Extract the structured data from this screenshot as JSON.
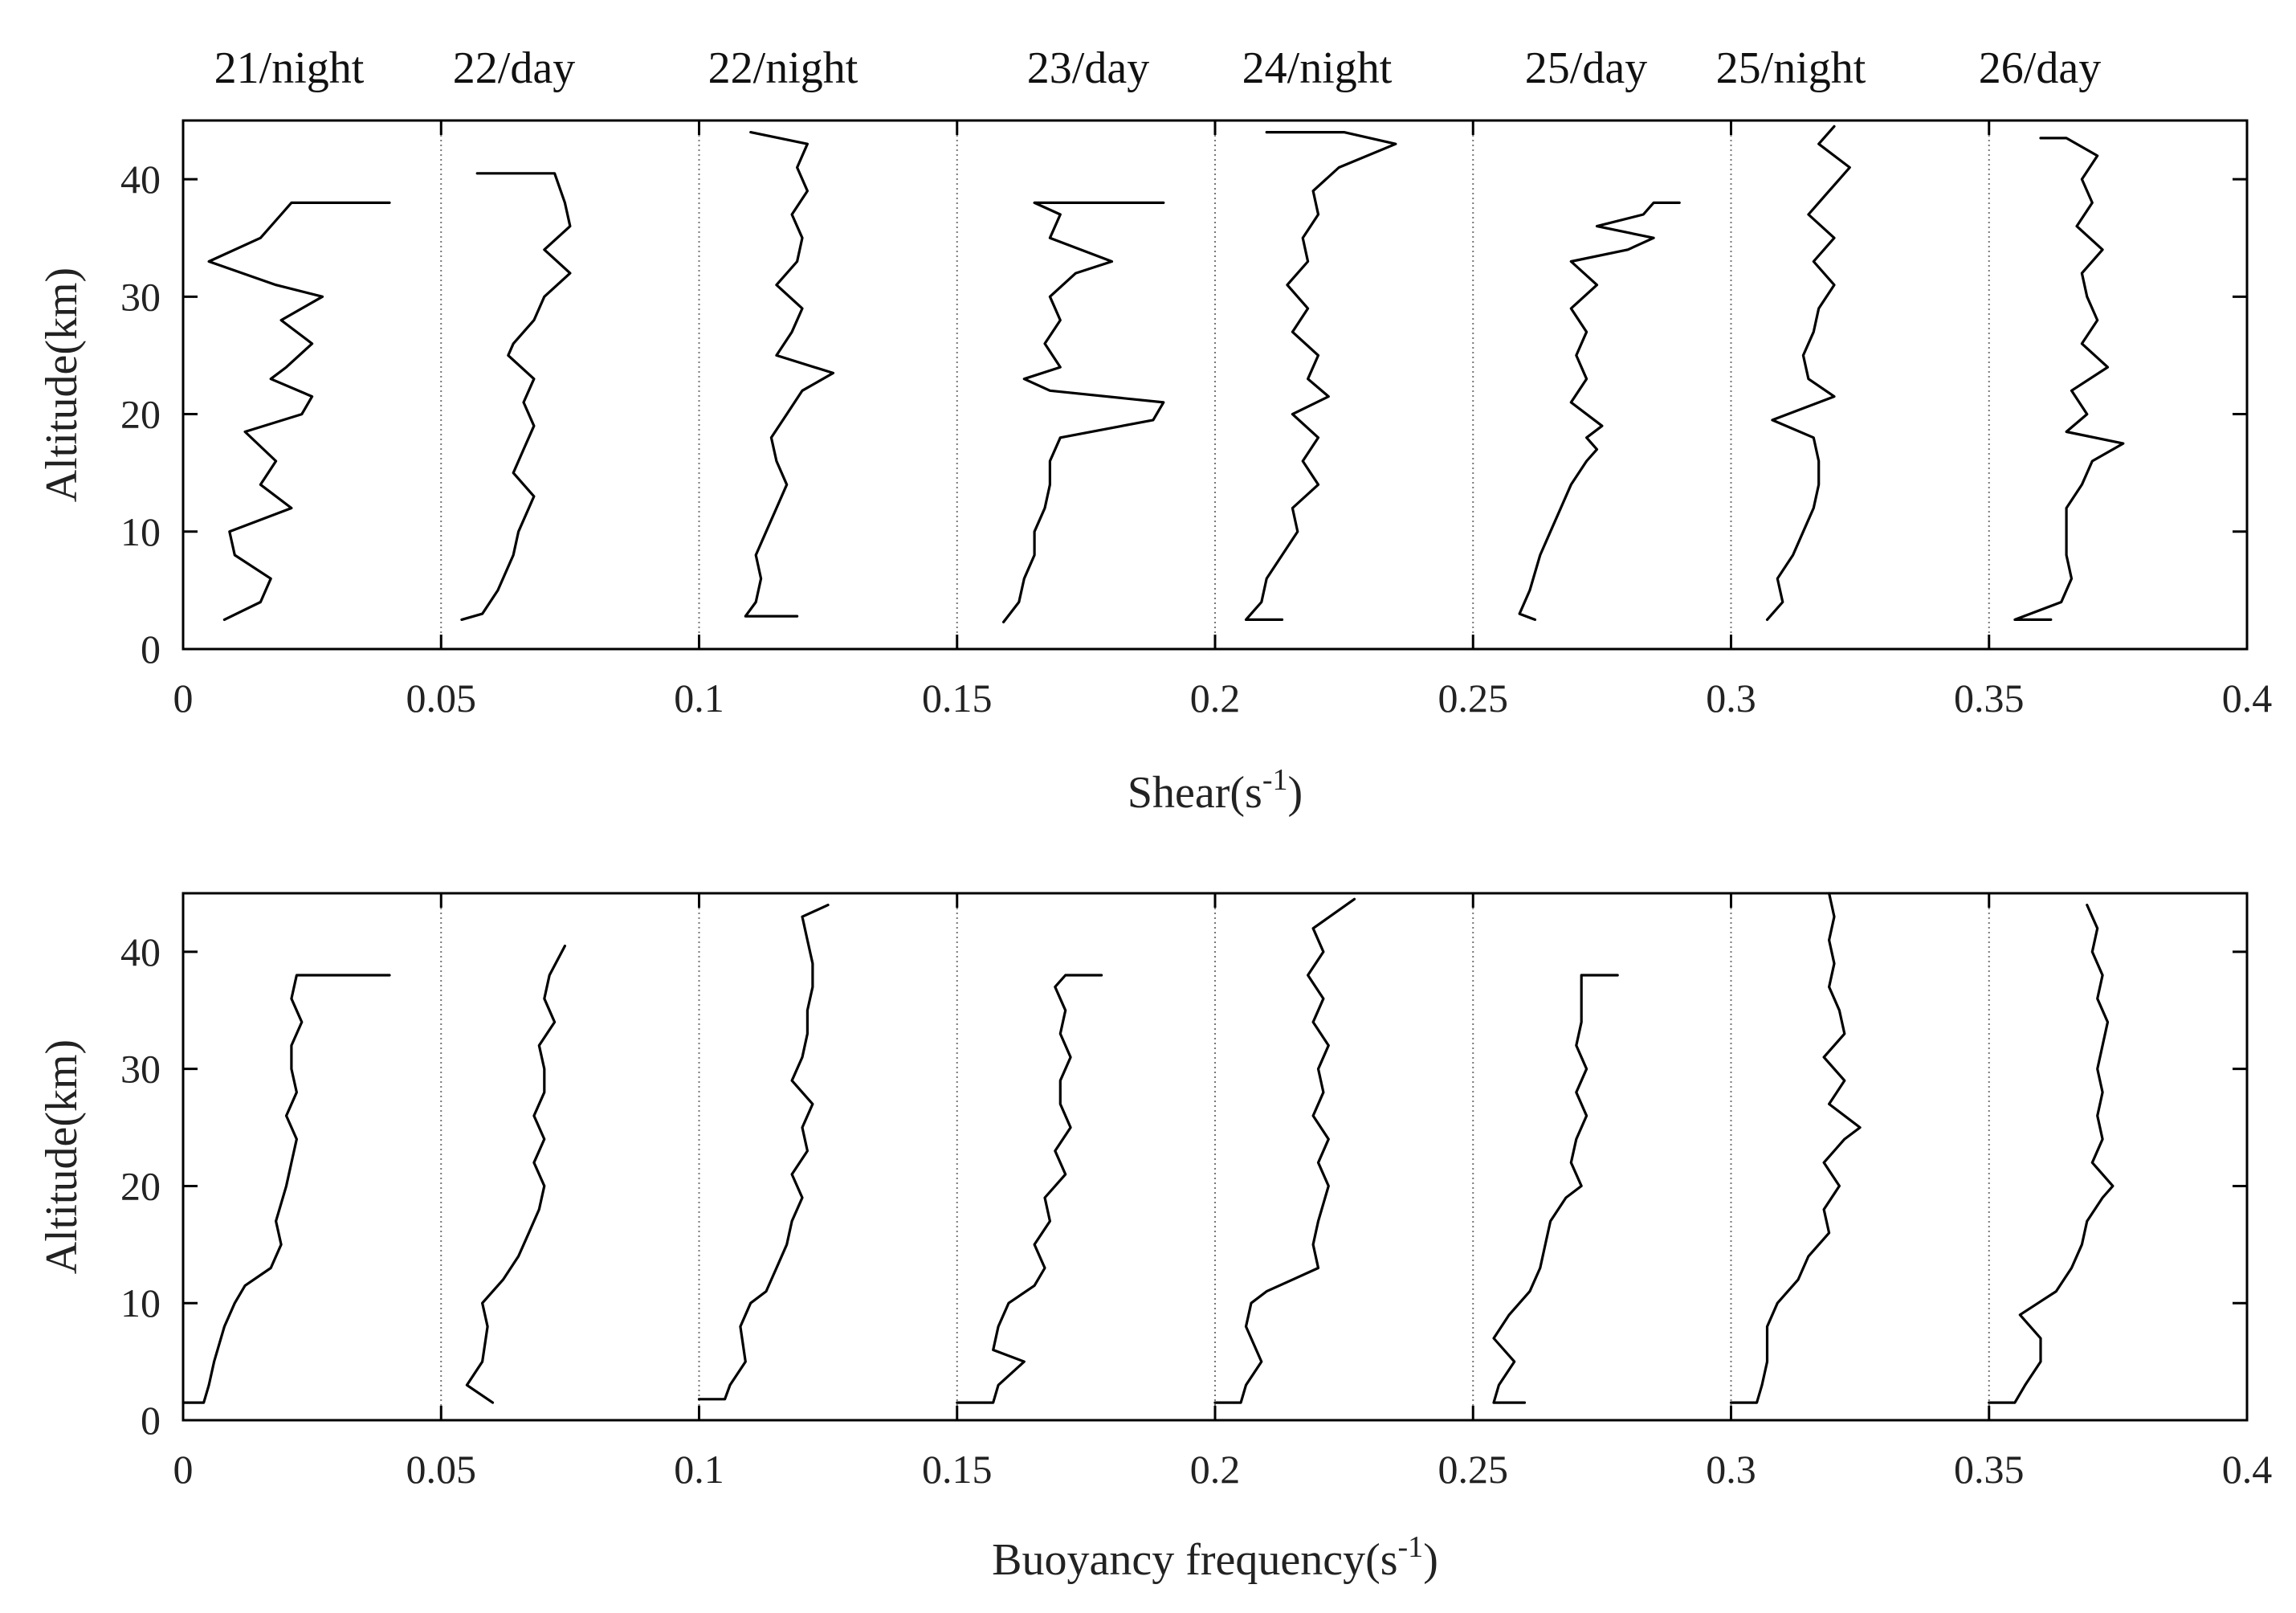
{
  "chart_data": {
    "type": "line",
    "subtype": "offset vertical profiles",
    "profile_headers": [
      "21/night",
      "22/day",
      "22/night",
      "23/day",
      "24/night",
      "25/day",
      "25/night",
      "26/day"
    ],
    "offsets": [
      0,
      0.05,
      0.1,
      0.15,
      0.2,
      0.25,
      0.3,
      0.35
    ],
    "panels": [
      {
        "id": "shear",
        "xlabel_main": "Shear(s",
        "xlabel_sup": "-1",
        "xlabel_end": ")",
        "ylabel": "Altitude(km)",
        "xlim": [
          0,
          0.4
        ],
        "ylim": [
          0,
          45
        ],
        "xticks": [
          0,
          0.05,
          0.1,
          0.15,
          0.2,
          0.25,
          0.3,
          0.35,
          0.4
        ],
        "xtick_labels": [
          "0",
          "0.05",
          "0.1",
          "0.15",
          "0.2",
          "0.25",
          "0.3",
          "0.35",
          "0.4"
        ],
        "yticks": [
          0,
          10,
          20,
          30,
          40
        ],
        "ytick_labels": [
          "0",
          "10",
          "20",
          "30",
          "40"
        ],
        "series": [
          {
            "name": "21/night",
            "altitude": [
              2.5,
              4,
              6,
              8,
              10,
              12,
              14,
              16,
              18.5,
              20,
              21.5,
              23,
              24,
              26,
              28,
              30,
              31,
              33,
              35,
              37,
              38,
              38
            ],
            "values": [
              0.008,
              0.015,
              0.017,
              0.01,
              0.009,
              0.021,
              0.015,
              0.018,
              0.012,
              0.023,
              0.025,
              0.017,
              0.02,
              0.025,
              0.019,
              0.027,
              0.018,
              0.005,
              0.015,
              0.019,
              0.021,
              0.04
            ]
          },
          {
            "name": "22/day",
            "altitude": [
              2.5,
              3,
              5,
              8,
              10,
              12,
              13,
              15,
              17,
              19,
              21,
              23,
              25,
              26,
              28,
              30,
              32,
              34,
              36,
              38,
              40.5,
              40.5
            ],
            "values": [
              0.054,
              0.058,
              0.061,
              0.064,
              0.065,
              0.067,
              0.068,
              0.064,
              0.066,
              0.068,
              0.066,
              0.068,
              0.063,
              0.064,
              0.068,
              0.07,
              0.075,
              0.07,
              0.075,
              0.074,
              0.072,
              0.057
            ]
          },
          {
            "name": "22/night",
            "altitude": [
              2.8,
              2.8,
              4,
              6,
              8,
              10,
              12,
              14,
              16,
              18,
              20,
              22,
              23.5,
              25,
              27,
              29,
              31,
              33,
              35,
              37,
              39,
              41,
              43,
              44
            ],
            "values": [
              0.119,
              0.109,
              0.111,
              0.112,
              0.111,
              0.113,
              0.115,
              0.117,
              0.115,
              0.114,
              0.117,
              0.12,
              0.126,
              0.115,
              0.118,
              0.12,
              0.115,
              0.119,
              0.12,
              0.118,
              0.121,
              0.119,
              0.121,
              0.11
            ]
          },
          {
            "name": "23/day",
            "altitude": [
              2.3,
              4,
              6,
              8,
              10,
              12,
              14,
              16,
              18,
              19.5,
              21,
              22,
              23,
              24,
              26,
              28,
              30,
              32,
              33,
              35,
              37,
              38,
              38
            ],
            "values": [
              0.159,
              0.162,
              0.163,
              0.165,
              0.165,
              0.167,
              0.168,
              0.168,
              0.17,
              0.188,
              0.19,
              0.168,
              0.163,
              0.17,
              0.167,
              0.17,
              0.168,
              0.173,
              0.18,
              0.168,
              0.17,
              0.165,
              0.19
            ]
          },
          {
            "name": "24/night",
            "altitude": [
              2.5,
              2.5,
              4,
              6,
              8,
              10,
              12,
              14,
              16,
              18,
              20,
              21.5,
              23,
              25,
              27,
              29,
              31,
              33,
              35,
              37,
              39,
              41,
              43,
              44,
              44
            ],
            "values": [
              0.213,
              0.206,
              0.209,
              0.21,
              0.213,
              0.216,
              0.215,
              0.22,
              0.217,
              0.22,
              0.215,
              0.222,
              0.218,
              0.22,
              0.215,
              0.218,
              0.214,
              0.218,
              0.217,
              0.22,
              0.219,
              0.224,
              0.235,
              0.225,
              0.21
            ]
          },
          {
            "name": "25/day",
            "altitude": [
              2.5,
              3,
              5,
              8,
              10,
              12,
              14,
              16,
              17,
              18,
              19,
              21,
              23,
              25,
              27,
              29,
              31,
              33,
              34,
              35,
              36,
              37,
              38,
              38
            ],
            "values": [
              0.262,
              0.259,
              0.261,
              0.263,
              0.265,
              0.267,
              0.269,
              0.272,
              0.274,
              0.272,
              0.275,
              0.269,
              0.272,
              0.27,
              0.272,
              0.269,
              0.274,
              0.269,
              0.28,
              0.285,
              0.274,
              0.283,
              0.285,
              0.29
            ]
          },
          {
            "name": "25/night",
            "altitude": [
              2.5,
              4,
              6,
              8,
              10,
              12,
              14,
              16,
              18,
              19.5,
              21.5,
              23,
              25,
              27,
              29,
              31,
              33,
              35,
              37,
              39,
              41,
              43,
              44.5
            ],
            "values": [
              0.307,
              0.31,
              0.309,
              0.312,
              0.314,
              0.316,
              0.317,
              0.317,
              0.316,
              0.308,
              0.32,
              0.315,
              0.314,
              0.316,
              0.317,
              0.32,
              0.316,
              0.32,
              0.315,
              0.319,
              0.323,
              0.317,
              0.32
            ]
          },
          {
            "name": "26/day",
            "altitude": [
              2.5,
              2.5,
              4,
              6,
              8,
              10,
              12,
              14,
              16,
              17.5,
              18.5,
              20,
              22,
              24,
              26,
              28,
              30,
              32,
              34,
              36,
              38,
              40,
              42,
              43.5,
              43.5
            ],
            "values": [
              0.362,
              0.355,
              0.364,
              0.366,
              0.365,
              0.365,
              0.365,
              0.368,
              0.37,
              0.376,
              0.365,
              0.369,
              0.366,
              0.373,
              0.368,
              0.371,
              0.369,
              0.368,
              0.372,
              0.367,
              0.37,
              0.368,
              0.371,
              0.365,
              0.36
            ]
          }
        ]
      },
      {
        "id": "buoyancy",
        "xlabel_main": "Buoyancy frequency(s",
        "xlabel_sup": "-1",
        "xlabel_end": ")",
        "ylabel": "Altitude(km)",
        "xlim": [
          0,
          0.4
        ],
        "ylim": [
          0,
          45
        ],
        "xticks": [
          0,
          0.05,
          0.1,
          0.15,
          0.2,
          0.25,
          0.3,
          0.35,
          0.4
        ],
        "xtick_labels": [
          "0",
          "0.05",
          "0.1",
          "0.15",
          "0.2",
          "0.25",
          "0.3",
          "0.35",
          "0.4"
        ],
        "yticks": [
          0,
          10,
          20,
          30,
          40
        ],
        "ytick_labels": [
          "0",
          "10",
          "20",
          "30",
          "40"
        ],
        "series": [
          {
            "name": "21/night",
            "altitude": [
              1.5,
              1.5,
              3,
              5,
              8,
              10,
              11.5,
              13,
              15,
              17,
              20,
              22,
              24,
              26,
              28,
              30,
              32,
              34,
              36,
              38,
              38
            ],
            "values": [
              0.0,
              0.004,
              0.005,
              0.006,
              0.008,
              0.01,
              0.012,
              0.017,
              0.019,
              0.018,
              0.02,
              0.021,
              0.022,
              0.02,
              0.022,
              0.021,
              0.021,
              0.023,
              0.021,
              0.022,
              0.04
            ]
          },
          {
            "name": "22/day",
            "altitude": [
              1.5,
              3,
              5,
              8,
              10,
              12,
              14,
              16,
              18,
              20,
              22,
              24,
              26,
              28,
              30,
              32,
              34,
              36,
              38,
              40.5
            ],
            "values": [
              0.06,
              0.055,
              0.058,
              0.059,
              0.058,
              0.062,
              0.065,
              0.067,
              0.069,
              0.07,
              0.068,
              0.07,
              0.068,
              0.07,
              0.07,
              0.069,
              0.072,
              0.07,
              0.071,
              0.074
            ]
          },
          {
            "name": "22/night",
            "altitude": [
              1.8,
              1.8,
              3,
              5,
              8,
              10,
              11,
              13,
              15,
              17,
              19,
              21,
              23,
              25,
              27,
              29,
              31,
              33,
              35,
              37,
              39,
              41,
              43,
              44
            ],
            "values": [
              0.1,
              0.105,
              0.106,
              0.109,
              0.108,
              0.11,
              0.113,
              0.115,
              0.117,
              0.118,
              0.12,
              0.118,
              0.121,
              0.12,
              0.122,
              0.118,
              0.12,
              0.121,
              0.121,
              0.122,
              0.122,
              0.121,
              0.12,
              0.125
            ]
          },
          {
            "name": "23/day",
            "altitude": [
              1.5,
              1.5,
              3,
              5,
              6,
              8,
              10,
              11.5,
              13,
              15,
              17,
              19,
              21,
              23,
              25,
              27,
              29,
              31,
              33,
              35,
              37,
              38,
              38
            ],
            "values": [
              0.15,
              0.157,
              0.158,
              0.163,
              0.157,
              0.158,
              0.16,
              0.165,
              0.167,
              0.165,
              0.168,
              0.167,
              0.171,
              0.169,
              0.172,
              0.17,
              0.17,
              0.172,
              0.17,
              0.171,
              0.169,
              0.171,
              0.178
            ]
          },
          {
            "name": "24/night",
            "altitude": [
              1.5,
              1.5,
              3,
              5,
              8,
              10,
              11,
              12,
              13,
              15,
              17,
              20,
              22,
              24,
              26,
              28,
              30,
              32,
              34,
              36,
              38,
              40,
              42,
              44.5
            ],
            "values": [
              0.2,
              0.205,
              0.206,
              0.209,
              0.206,
              0.207,
              0.21,
              0.215,
              0.22,
              0.219,
              0.22,
              0.222,
              0.22,
              0.222,
              0.219,
              0.221,
              0.22,
              0.222,
              0.219,
              0.221,
              0.218,
              0.221,
              0.219,
              0.227
            ]
          },
          {
            "name": "25/day",
            "altitude": [
              1.5,
              1.5,
              3,
              5,
              7,
              9,
              11,
              13,
              15,
              17,
              19,
              20,
              22,
              24,
              26,
              28,
              30,
              32,
              34,
              36,
              38,
              38
            ],
            "values": [
              0.26,
              0.254,
              0.255,
              0.258,
              0.254,
              0.257,
              0.261,
              0.263,
              0.264,
              0.265,
              0.268,
              0.271,
              0.269,
              0.27,
              0.272,
              0.27,
              0.272,
              0.27,
              0.271,
              0.271,
              0.271,
              0.278
            ]
          },
          {
            "name": "25/night",
            "altitude": [
              1.5,
              1.5,
              3,
              5,
              8,
              10,
              12,
              14,
              16,
              18,
              20,
              22,
              24,
              25,
              27,
              29,
              31,
              33,
              35,
              37,
              39,
              41,
              43,
              45
            ],
            "values": [
              0.3,
              0.305,
              0.306,
              0.307,
              0.307,
              0.309,
              0.313,
              0.315,
              0.319,
              0.318,
              0.321,
              0.318,
              0.322,
              0.325,
              0.319,
              0.322,
              0.318,
              0.322,
              0.321,
              0.319,
              0.32,
              0.319,
              0.32,
              0.319
            ]
          },
          {
            "name": "26/day",
            "altitude": [
              1.5,
              1.5,
              3,
              5,
              7,
              9,
              11,
              13,
              15,
              17,
              19,
              20,
              22,
              24,
              26,
              28,
              30,
              32,
              34,
              36,
              38,
              40,
              42,
              44
            ],
            "values": [
              0.35,
              0.355,
              0.357,
              0.36,
              0.36,
              0.356,
              0.363,
              0.366,
              0.368,
              0.369,
              0.372,
              0.374,
              0.37,
              0.372,
              0.371,
              0.372,
              0.371,
              0.372,
              0.373,
              0.371,
              0.372,
              0.37,
              0.371,
              0.369
            ]
          }
        ]
      }
    ]
  }
}
